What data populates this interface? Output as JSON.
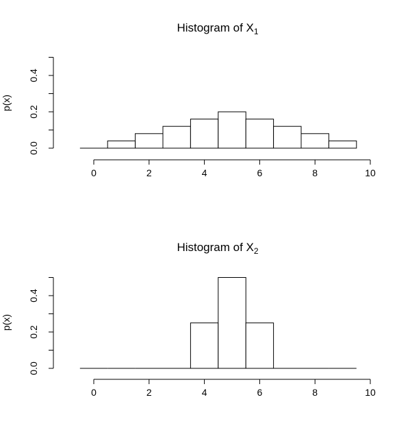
{
  "chart_data": [
    {
      "type": "bar",
      "title": "Histogram of X",
      "title_subscript": "1",
      "xlabel": "",
      "ylabel": "p(x)",
      "x": [
        0,
        1,
        2,
        3,
        4,
        5,
        6,
        7,
        8,
        9
      ],
      "values": [
        0.0,
        0.04,
        0.08,
        0.12,
        0.16,
        0.2,
        0.16,
        0.12,
        0.08,
        0.04
      ],
      "xlim": [
        0,
        10
      ],
      "ylim": [
        0,
        0.5
      ],
      "x_ticks": [
        "0",
        "2",
        "4",
        "6",
        "8",
        "10"
      ],
      "y_ticks": [
        "0.0",
        "0.2",
        "0.4"
      ],
      "grid": false
    },
    {
      "type": "bar",
      "title": "Histogram of X",
      "title_subscript": "2",
      "xlabel": "",
      "ylabel": "p(x)",
      "x": [
        0,
        1,
        2,
        3,
        4,
        5,
        6,
        7,
        8,
        9
      ],
      "values": [
        0.0,
        0.0,
        0.0,
        0.0,
        0.25,
        0.5,
        0.25,
        0.0,
        0.0,
        0.0
      ],
      "xlim": [
        0,
        10
      ],
      "ylim": [
        0,
        0.5
      ],
      "x_ticks": [
        "0",
        "2",
        "4",
        "6",
        "8",
        "10"
      ],
      "y_ticks": [
        "0.0",
        "0.2",
        "0.4"
      ],
      "grid": false
    }
  ]
}
